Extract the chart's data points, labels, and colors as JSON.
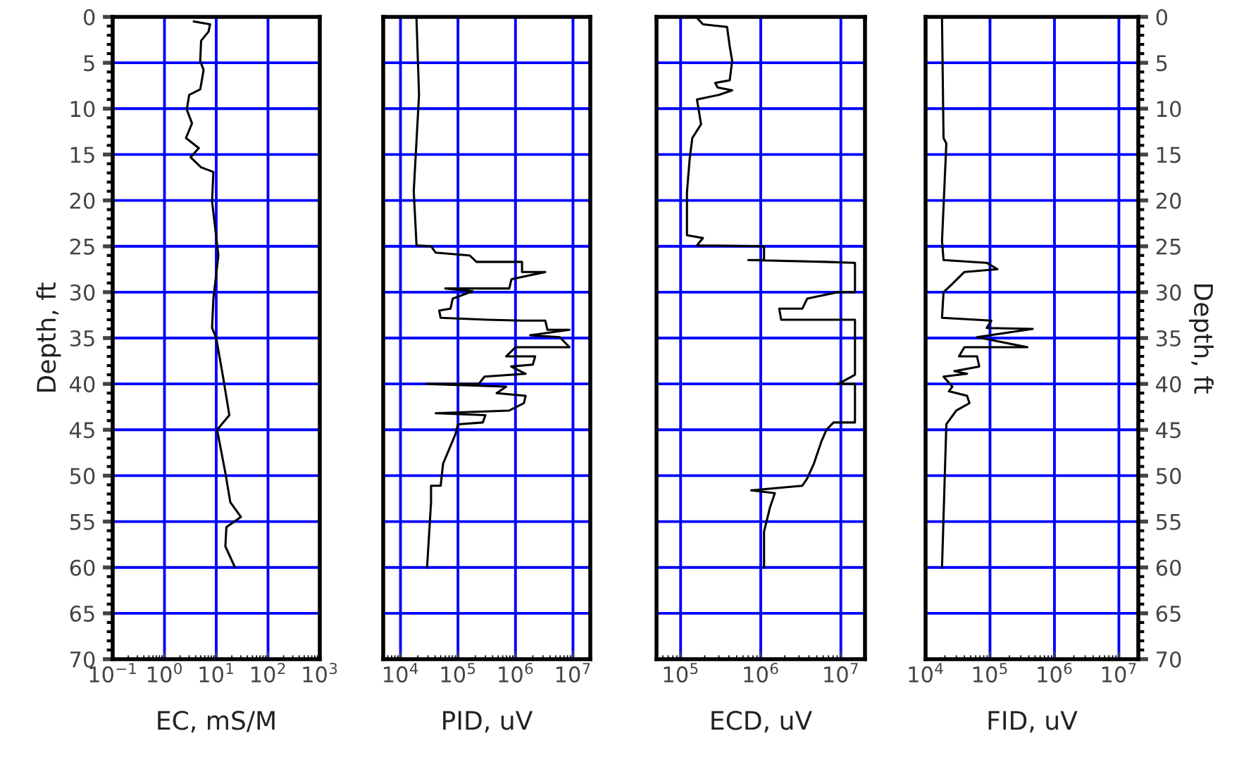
{
  "chart_data": [
    {
      "type": "line",
      "xlabel": "EC, mS/M",
      "ylabel": "Depth, ft",
      "log": "x",
      "grid": true,
      "xlim": [
        0.1,
        1000
      ],
      "xticks": [
        {
          "value": 0.1,
          "label": "10$^{−1}$"
        },
        {
          "value": 1,
          "label": "10$^{0}$"
        },
        {
          "value": 10,
          "label": "10$^{1}$"
        },
        {
          "value": 100,
          "label": "10$^{2}$"
        },
        {
          "value": 1000,
          "label": "10$^{3}$"
        }
      ],
      "ylim": [
        70,
        0
      ],
      "yticks": [
        0,
        5,
        10,
        15,
        20,
        25,
        30,
        35,
        40,
        45,
        50,
        55,
        60,
        65,
        70
      ],
      "series": [
        {
          "color": "#000000",
          "x": [
            3.7,
            7.6,
            7.1,
            5.1,
            4.9,
            5.7,
            4.9,
            3.0,
            2.7,
            3.4,
            2.6,
            4.6,
            3.2,
            5.1,
            8.8,
            8.3,
            11,
            8.8,
            8.3,
            10,
            13.5,
            17.9,
            10.4,
            15,
            18.7,
            30,
            15.7,
            15,
            23
          ],
          "values": [
            0.5,
            0.8,
            1.6,
            2.6,
            4.8,
            5.8,
            7.9,
            8.5,
            10.1,
            11.6,
            13.2,
            14.3,
            15.3,
            16.4,
            16.9,
            20.1,
            26,
            30.7,
            33.9,
            35,
            39.2,
            43.4,
            45,
            49.7,
            52.9,
            54.5,
            55.6,
            57.7,
            60
          ]
        }
      ]
    },
    {
      "type": "line",
      "xlabel": "PID, uV",
      "log": "x",
      "grid": true,
      "tick_labels": "x",
      "xlim": [
        5000,
        20000000
      ],
      "xticks": [
        {
          "value": 10000,
          "label": "10$^{4}$"
        },
        {
          "value": 100000,
          "label": "10$^{5}$"
        },
        {
          "value": 1000000,
          "label": "10$^{6}$"
        },
        {
          "value": 10000000,
          "label": "10$^{7}$"
        }
      ],
      "ylim": [
        70,
        0
      ],
      "yticks": [
        0,
        5,
        10,
        15,
        20,
        25,
        30,
        35,
        40,
        45,
        50,
        55,
        60,
        65,
        70
      ],
      "series": [
        {
          "color": "#000000",
          "x": [
            19000,
            21000,
            17000,
            19000,
            34000,
            41000,
            160000,
            210000,
            1300000,
            1300000,
            3300000,
            850000,
            780000,
            60000,
            180000,
            81000,
            74000,
            47000,
            50000,
            320000,
            1300000,
            3300000,
            3600000,
            8700000,
            1800000,
            5900000,
            8700000,
            1000000,
            690000,
            2200000,
            2000000,
            840000,
            1500000,
            290000,
            230000,
            28000,
            690000,
            470000,
            1500000,
            1400000,
            780000,
            41000,
            300000,
            270000,
            100000,
            90000,
            55000,
            50000,
            34000,
            34000,
            29000
          ],
          "values": [
            0.3,
            8.5,
            19,
            24.9,
            25,
            25.7,
            26,
            26.7,
            26.7,
            27.8,
            27.8,
            28.6,
            29.6,
            29.6,
            29.9,
            30.7,
            31.8,
            32,
            32.8,
            33,
            33.1,
            33.1,
            34.1,
            34.1,
            34.7,
            34.9,
            36,
            36,
            37,
            37,
            37.9,
            38.1,
            38.9,
            39.2,
            40,
            40,
            40.3,
            41,
            41.3,
            42.1,
            42.9,
            43.2,
            43.4,
            44.2,
            44.4,
            45.5,
            48.7,
            51.1,
            51.1,
            52.9,
            60
          ]
        }
      ]
    },
    {
      "type": "line",
      "xlabel": "ECD, uV",
      "log": "x",
      "grid": true,
      "tick_labels": "x",
      "xlim": [
        50000,
        20000000
      ],
      "xticks": [
        {
          "value": 100000,
          "label": "10$^{5}$"
        },
        {
          "value": 1000000,
          "label": "10$^{6}$"
        },
        {
          "value": 10000000,
          "label": "10$^{7}$"
        }
      ],
      "ylim": [
        70,
        0
      ],
      "yticks": [
        0,
        5,
        10,
        15,
        20,
        25,
        30,
        35,
        40,
        45,
        50,
        55,
        60,
        65,
        70
      ],
      "series": [
        {
          "color": "#000000",
          "x": [
            160000,
            190000,
            380000,
            410000,
            440000,
            410000,
            270000,
            290000,
            440000,
            300000,
            160000,
            180000,
            140000,
            130000,
            120000,
            120000,
            190000,
            160000,
            1100000,
            1100000,
            700000,
            6600000,
            15000000,
            15000000,
            9300000,
            3800000,
            3300000,
            1700000,
            1800000,
            15000000,
            15000000,
            9300000,
            15000000,
            15000000,
            8100000,
            6600000,
            5700000,
            4600000,
            3800000,
            3300000,
            760000,
            1500000,
            1300000,
            1100000,
            1100000
          ],
          "values": [
            0.1,
            0.8,
            1.1,
            3.2,
            4.8,
            6.9,
            7.2,
            7.7,
            8,
            8.5,
            9,
            11.7,
            13.2,
            15.4,
            19.1,
            23.8,
            24.1,
            24.9,
            25,
            26.5,
            26.5,
            26.7,
            26.8,
            30,
            30,
            30.7,
            31.8,
            31.8,
            33,
            33,
            39,
            40,
            40,
            44.2,
            44.2,
            45,
            46.3,
            48.7,
            50.3,
            51.1,
            51.6,
            51.9,
            53.5,
            56.1,
            60
          ]
        }
      ]
    },
    {
      "type": "line",
      "xlabel": "FID, uV",
      "ylabel": "Depth, ft",
      "log": "x",
      "grid": true,
      "xlim": [
        10000,
        20000000
      ],
      "xticks": [
        {
          "value": 10000,
          "label": "10$^{4}$"
        },
        {
          "value": 100000,
          "label": "10$^{5}$"
        },
        {
          "value": 1000000,
          "label": "10$^{6}$"
        },
        {
          "value": 10000000,
          "label": "10$^{7}$"
        }
      ],
      "ylim": [
        70,
        0
      ],
      "yticks": [
        0,
        5,
        10,
        15,
        20,
        25,
        30,
        35,
        40,
        45,
        50,
        55,
        60,
        65,
        70
      ],
      "series": [
        {
          "color": "#000000",
          "x": [
            18000,
            19000,
            21000,
            18000,
            19000,
            89000,
            130000,
            40000,
            26000,
            19000,
            18000,
            105000,
            89000,
            460000,
            63000,
            380000,
            40000,
            33000,
            63000,
            68000,
            28000,
            44000,
            19000,
            26000,
            23000,
            44000,
            48000,
            30000,
            21000,
            18000
          ],
          "values": [
            0.3,
            13.2,
            13.8,
            24.4,
            26.5,
            26.8,
            27.5,
            27.8,
            29.1,
            30,
            32.8,
            33.1,
            33.9,
            34,
            34.9,
            36,
            36,
            37,
            37,
            38.1,
            38.6,
            38.9,
            39.2,
            40.3,
            40.8,
            41.3,
            42.1,
            42.9,
            44.4,
            60
          ]
        }
      ]
    }
  ]
}
